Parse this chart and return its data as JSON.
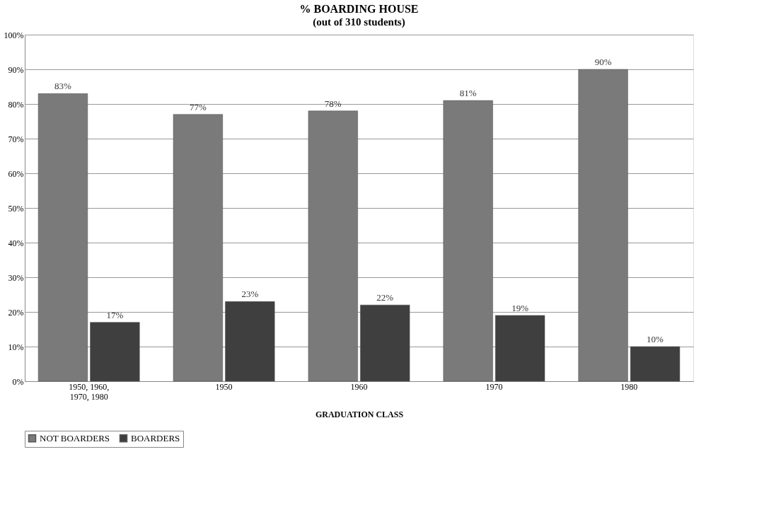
{
  "chart_data": {
    "type": "bar",
    "title": "% BOARDING HOUSE",
    "subtitle": "(out of 310 students)",
    "xlabel": "GRADUATION CLASS",
    "categories": [
      "1950, 1960, 1970, 1980",
      "1950",
      "1960",
      "1970",
      "1980"
    ],
    "series": [
      {
        "name": "NOT BOARDERS",
        "color": "#7a7a7a",
        "values": [
          83,
          77,
          78,
          81,
          90
        ],
        "value_labels": [
          "83%",
          "77%",
          "78%",
          "81%",
          "90%"
        ]
      },
      {
        "name": "BOARDERS",
        "color": "#3f3f3f",
        "values": [
          17,
          23,
          22,
          19,
          10
        ],
        "value_labels": [
          "17%",
          "23%",
          "22%",
          "19%",
          "10%"
        ]
      }
    ],
    "ylim": [
      0,
      100
    ],
    "yticks": [
      {
        "value": 0,
        "label": "0%"
      },
      {
        "value": 10,
        "label": "10%"
      },
      {
        "value": 20,
        "label": "20%"
      },
      {
        "value": 30,
        "label": "30%"
      },
      {
        "value": 40,
        "label": "40%"
      },
      {
        "value": 50,
        "label": "50%"
      },
      {
        "value": 60,
        "label": "60%"
      },
      {
        "value": 70,
        "label": "70%"
      },
      {
        "value": 80,
        "label": "80%"
      },
      {
        "value": 90,
        "label": "90%"
      },
      {
        "value": 100,
        "label": "100%"
      }
    ],
    "grid": "y",
    "legend": "bottom"
  }
}
